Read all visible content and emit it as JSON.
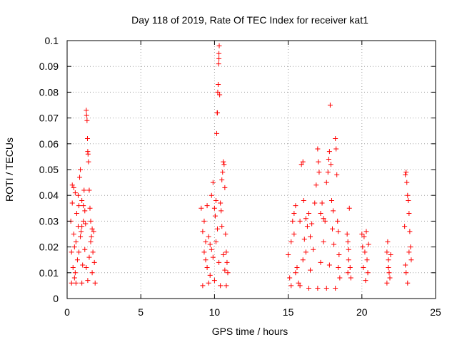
{
  "chart_data": {
    "type": "scatter",
    "title": "Day 118 of 2019, Rate Of TEC Index for receiver kat1",
    "xlabel": "GPS time / hours",
    "ylabel": "ROTI / TECUs",
    "xlim": [
      0,
      25
    ],
    "ylim": [
      0,
      0.1
    ],
    "grid": true,
    "marker": "+",
    "color": "#ff0000",
    "x_ticks": [
      "0",
      "5",
      "10",
      "15",
      "20",
      "25"
    ],
    "y_ticks": [
      "0",
      "0.01",
      "0.02",
      "0.03",
      "0.04",
      "0.05",
      "0.06",
      "0.07",
      "0.08",
      "0.09",
      "0.1"
    ],
    "series": [
      {
        "name": "ROTI",
        "points": [
          [
            0.25,
            0.03
          ],
          [
            0.3,
            0.018
          ],
          [
            0.35,
            0.044
          ],
          [
            0.4,
            0.012
          ],
          [
            0.45,
            0.043
          ],
          [
            0.5,
            0.008
          ],
          [
            0.55,
            0.041
          ],
          [
            0.6,
            0.022
          ],
          [
            0.65,
            0.033
          ],
          [
            0.7,
            0.015
          ],
          [
            0.75,
            0.028
          ],
          [
            0.8,
            0.036
          ],
          [
            0.85,
            0.047
          ],
          [
            0.9,
            0.05
          ],
          [
            0.95,
            0.026
          ],
          [
            1.0,
            0.038
          ],
          [
            1.05,
            0.013
          ],
          [
            1.1,
            0.036
          ],
          [
            1.15,
            0.042
          ],
          [
            1.2,
            0.034
          ],
          [
            1.25,
            0.029
          ],
          [
            1.3,
            0.073
          ],
          [
            1.32,
            0.071
          ],
          [
            1.35,
            0.069
          ],
          [
            1.38,
            0.062
          ],
          [
            1.4,
            0.057
          ],
          [
            1.42,
            0.056
          ],
          [
            1.45,
            0.053
          ],
          [
            1.5,
            0.042
          ],
          [
            1.55,
            0.035
          ],
          [
            1.6,
            0.03
          ],
          [
            1.65,
            0.024
          ],
          [
            1.7,
            0.027
          ],
          [
            1.75,
            0.018
          ],
          [
            1.8,
            0.026
          ],
          [
            1.85,
            0.014
          ],
          [
            1.9,
            0.006
          ],
          [
            0.3,
            0.006
          ],
          [
            0.6,
            0.006
          ],
          [
            1.0,
            0.006
          ],
          [
            1.4,
            0.007
          ],
          [
            0.5,
            0.02
          ],
          [
            0.9,
            0.024
          ],
          [
            1.2,
            0.019
          ],
          [
            1.5,
            0.016
          ],
          [
            0.35,
            0.037
          ],
          [
            0.75,
            0.04
          ],
          [
            1.1,
            0.03
          ],
          [
            1.6,
            0.022
          ],
          [
            0.45,
            0.025
          ],
          [
            0.8,
            0.018
          ],
          [
            1.3,
            0.012
          ],
          [
            1.7,
            0.01
          ],
          [
            0.55,
            0.01
          ],
          [
            1.0,
            0.028
          ],
          [
            9.1,
            0.035
          ],
          [
            9.2,
            0.026
          ],
          [
            9.3,
            0.03
          ],
          [
            9.4,
            0.015
          ],
          [
            9.5,
            0.036
          ],
          [
            9.6,
            0.024
          ],
          [
            9.7,
            0.021
          ],
          [
            9.8,
            0.04
          ],
          [
            9.9,
            0.045
          ],
          [
            10.0,
            0.035
          ],
          [
            10.05,
            0.032
          ],
          [
            10.1,
            0.038
          ],
          [
            10.15,
            0.064
          ],
          [
            10.18,
            0.072
          ],
          [
            10.2,
            0.072
          ],
          [
            10.22,
            0.08
          ],
          [
            10.25,
            0.083
          ],
          [
            10.28,
            0.091
          ],
          [
            10.3,
            0.095
          ],
          [
            10.32,
            0.098
          ],
          [
            10.3,
            0.093
          ],
          [
            10.35,
            0.079
          ],
          [
            10.4,
            0.037
          ],
          [
            10.45,
            0.034
          ],
          [
            10.5,
            0.046
          ],
          [
            10.55,
            0.049
          ],
          [
            10.6,
            0.053
          ],
          [
            10.65,
            0.052
          ],
          [
            10.7,
            0.043
          ],
          [
            10.75,
            0.025
          ],
          [
            10.8,
            0.018
          ],
          [
            10.85,
            0.014
          ],
          [
            10.9,
            0.01
          ],
          [
            9.2,
            0.005
          ],
          [
            9.6,
            0.006
          ],
          [
            10.0,
            0.007
          ],
          [
            10.4,
            0.005
          ],
          [
            10.8,
            0.005
          ],
          [
            9.3,
            0.018
          ],
          [
            9.5,
            0.012
          ],
          [
            9.7,
            0.009
          ],
          [
            9.9,
            0.016
          ],
          [
            10.1,
            0.022
          ],
          [
            10.3,
            0.014
          ],
          [
            10.5,
            0.028
          ],
          [
            10.7,
            0.011
          ],
          [
            9.4,
            0.022
          ],
          [
            9.8,
            0.019
          ],
          [
            10.2,
            0.027
          ],
          [
            10.6,
            0.017
          ],
          [
            15.0,
            0.017
          ],
          [
            15.1,
            0.008
          ],
          [
            15.2,
            0.022
          ],
          [
            15.3,
            0.03
          ],
          [
            15.4,
            0.033
          ],
          [
            15.5,
            0.036
          ],
          [
            15.6,
            0.012
          ],
          [
            15.7,
            0.006
          ],
          [
            15.8,
            0.03
          ],
          [
            15.9,
            0.052
          ],
          [
            16.0,
            0.053
          ],
          [
            16.05,
            0.038
          ],
          [
            16.1,
            0.023
          ],
          [
            16.2,
            0.018
          ],
          [
            16.3,
            0.028
          ],
          [
            16.4,
            0.033
          ],
          [
            16.5,
            0.024
          ],
          [
            16.6,
            0.029
          ],
          [
            16.7,
            0.019
          ],
          [
            16.8,
            0.037
          ],
          [
            16.9,
            0.044
          ],
          [
            17.0,
            0.058
          ],
          [
            17.05,
            0.053
          ],
          [
            17.1,
            0.049
          ],
          [
            17.2,
            0.033
          ],
          [
            17.3,
            0.037
          ],
          [
            17.4,
            0.031
          ],
          [
            17.5,
            0.03
          ],
          [
            17.6,
            0.045
          ],
          [
            17.7,
            0.049
          ],
          [
            17.75,
            0.054
          ],
          [
            17.8,
            0.057
          ],
          [
            17.85,
            0.075
          ],
          [
            17.9,
            0.052
          ],
          [
            17.95,
            0.038
          ],
          [
            18.0,
            0.027
          ],
          [
            18.05,
            0.034
          ],
          [
            18.1,
            0.021
          ],
          [
            18.2,
            0.062
          ],
          [
            18.25,
            0.058
          ],
          [
            18.3,
            0.048
          ],
          [
            18.35,
            0.03
          ],
          [
            18.4,
            0.026
          ],
          [
            18.45,
            0.017
          ],
          [
            18.5,
            0.008
          ],
          [
            15.2,
            0.005
          ],
          [
            15.8,
            0.005
          ],
          [
            16.4,
            0.004
          ],
          [
            17.0,
            0.004
          ],
          [
            17.6,
            0.004
          ],
          [
            18.2,
            0.004
          ],
          [
            15.5,
            0.01
          ],
          [
            16.0,
            0.015
          ],
          [
            16.5,
            0.011
          ],
          [
            17.2,
            0.014
          ],
          [
            17.8,
            0.013
          ],
          [
            18.4,
            0.012
          ],
          [
            15.4,
            0.025
          ],
          [
            16.2,
            0.031
          ],
          [
            17.4,
            0.022
          ],
          [
            19.0,
            0.025
          ],
          [
            19.05,
            0.022
          ],
          [
            19.1,
            0.015
          ],
          [
            19.15,
            0.035
          ],
          [
            19.2,
            0.012
          ],
          [
            19.25,
            0.008
          ],
          [
            19.1,
            0.019
          ],
          [
            19.05,
            0.01
          ],
          [
            20.0,
            0.025
          ],
          [
            20.05,
            0.02
          ],
          [
            20.1,
            0.012
          ],
          [
            20.15,
            0.024
          ],
          [
            20.2,
            0.018
          ],
          [
            20.25,
            0.007
          ],
          [
            20.3,
            0.026
          ],
          [
            20.35,
            0.015
          ],
          [
            20.4,
            0.01
          ],
          [
            20.45,
            0.021
          ],
          [
            21.7,
            0.018
          ],
          [
            21.75,
            0.022
          ],
          [
            21.8,
            0.015
          ],
          [
            21.85,
            0.01
          ],
          [
            21.9,
            0.008
          ],
          [
            21.95,
            0.017
          ],
          [
            21.8,
            0.012
          ],
          [
            21.7,
            0.006
          ],
          [
            22.9,
            0.028
          ],
          [
            22.95,
            0.048
          ],
          [
            23.0,
            0.049
          ],
          [
            23.05,
            0.045
          ],
          [
            23.1,
            0.04
          ],
          [
            23.15,
            0.038
          ],
          [
            23.2,
            0.033
          ],
          [
            23.25,
            0.026
          ],
          [
            23.3,
            0.02
          ],
          [
            23.35,
            0.015
          ],
          [
            23.0,
            0.01
          ],
          [
            23.1,
            0.006
          ],
          [
            23.2,
            0.018
          ],
          [
            22.95,
            0.013
          ]
        ]
      }
    ]
  }
}
